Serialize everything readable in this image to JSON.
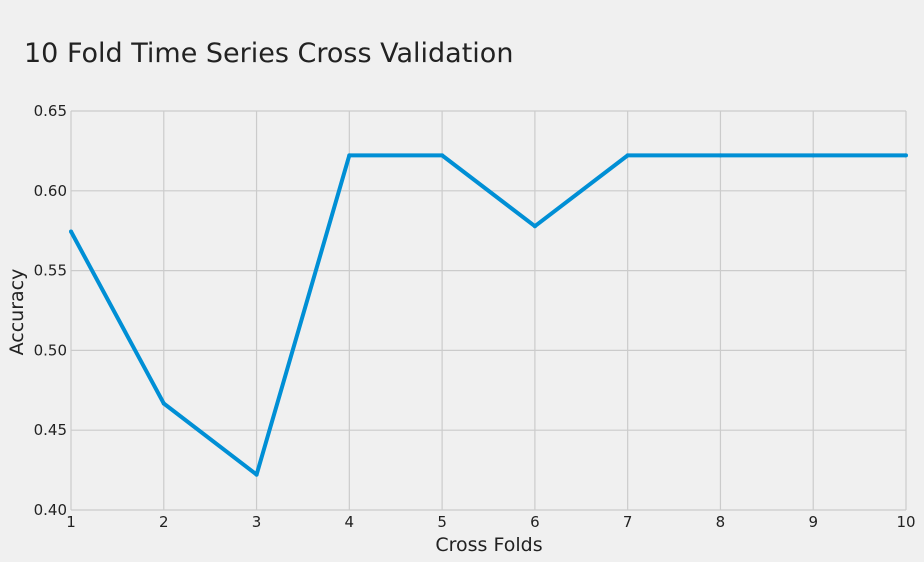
{
  "chart_data": {
    "type": "line",
    "title": "10 Fold Time Series Cross Validation",
    "xlabel": "Cross Folds",
    "ylabel": "Accuracy",
    "xlim": [
      1,
      10
    ],
    "ylim": [
      0.4,
      0.65
    ],
    "x_ticks": [
      "1",
      "2",
      "3",
      "4",
      "5",
      "6",
      "7",
      "8",
      "9",
      "10"
    ],
    "y_ticks": [
      "0.40",
      "0.45",
      "0.50",
      "0.55",
      "0.60",
      "0.65"
    ],
    "grid": true,
    "series": [
      {
        "color": "#008fd5",
        "x": [
          1,
          2,
          3,
          4,
          5,
          6,
          7,
          8,
          9,
          10
        ],
        "y": [
          0.5745,
          0.4667,
          0.4222,
          0.6222,
          0.6222,
          0.5778,
          0.6222,
          0.6222,
          0.6222,
          0.6222
        ]
      }
    ]
  }
}
